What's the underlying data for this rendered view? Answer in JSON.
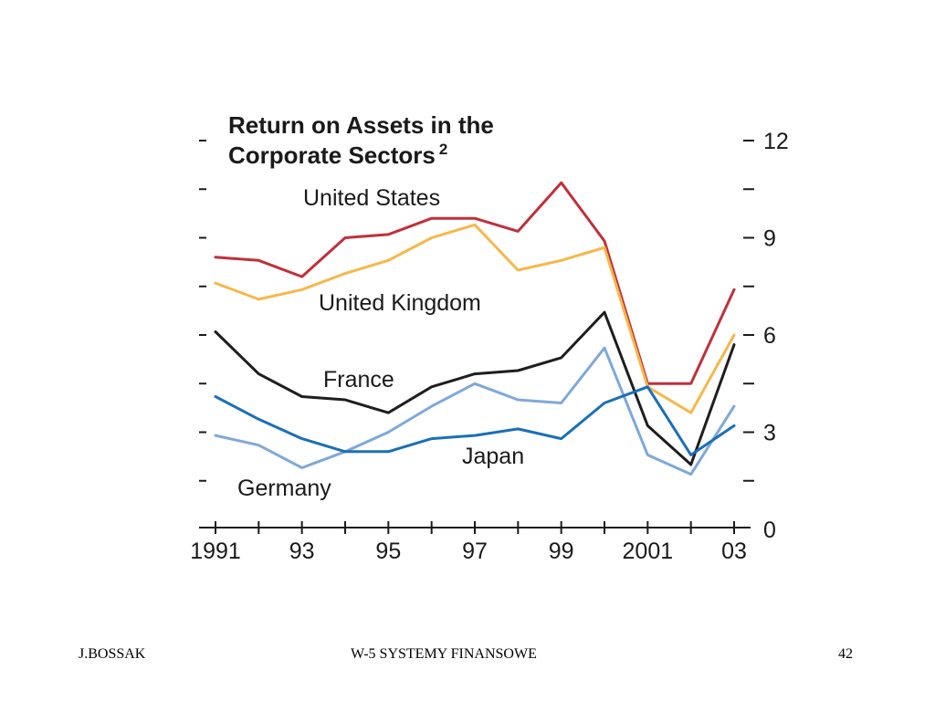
{
  "chart_data": {
    "type": "line",
    "title_line1": "Return on Assets in the",
    "title_line2": "Corporate Sectors",
    "title_superscript": "2",
    "x": [
      1991,
      1992,
      1993,
      1994,
      1995,
      1996,
      1997,
      1998,
      1999,
      2000,
      2001,
      2002,
      2003
    ],
    "x_tick_values": [
      1991,
      1993,
      1995,
      1997,
      1999,
      2001,
      2003
    ],
    "x_tick_labels": [
      "1991",
      "93",
      "95",
      "97",
      "99",
      "2001",
      "03"
    ],
    "y_tick_values": [
      0,
      3,
      6,
      9,
      12
    ],
    "y_tick_labels": [
      "0",
      "3",
      "6",
      "9",
      "12"
    ],
    "ylim": [
      0,
      12
    ],
    "y_axis_side": "right",
    "grid": false,
    "legend": "inline labels",
    "series": [
      {
        "name": "United States",
        "color": "#c0303a",
        "values": [
          8.4,
          8.3,
          7.8,
          9.0,
          9.1,
          9.6,
          9.6,
          9.2,
          10.7,
          8.9,
          4.5,
          4.5,
          7.4
        ]
      },
      {
        "name": "United Kingdom",
        "color": "#f5b84a",
        "values": [
          7.6,
          7.1,
          7.4,
          7.9,
          8.3,
          9.0,
          9.4,
          8.0,
          8.3,
          8.7,
          4.4,
          3.6,
          6.0
        ]
      },
      {
        "name": "France",
        "color": "#1e1e1e",
        "values": [
          6.1,
          4.8,
          4.1,
          4.0,
          3.6,
          4.4,
          4.8,
          4.9,
          5.3,
          6.7,
          3.2,
          2.0,
          5.7
        ]
      },
      {
        "name": "Germany",
        "color": "#7fa8d9",
        "values": [
          2.9,
          2.6,
          1.9,
          2.4,
          3.0,
          3.8,
          4.5,
          4.0,
          3.9,
          5.6,
          2.3,
          1.7,
          3.8
        ]
      },
      {
        "name": "Japan",
        "color": "#1a6fb8",
        "values": [
          4.1,
          3.4,
          2.8,
          2.4,
          2.4,
          2.8,
          2.9,
          3.1,
          2.8,
          3.9,
          4.4,
          2.3,
          3.2
        ]
      }
    ]
  },
  "footer": {
    "left": "J.BOSSAK",
    "center": "W-5 SYSTEMY  FINANSOWE",
    "right": "42"
  }
}
